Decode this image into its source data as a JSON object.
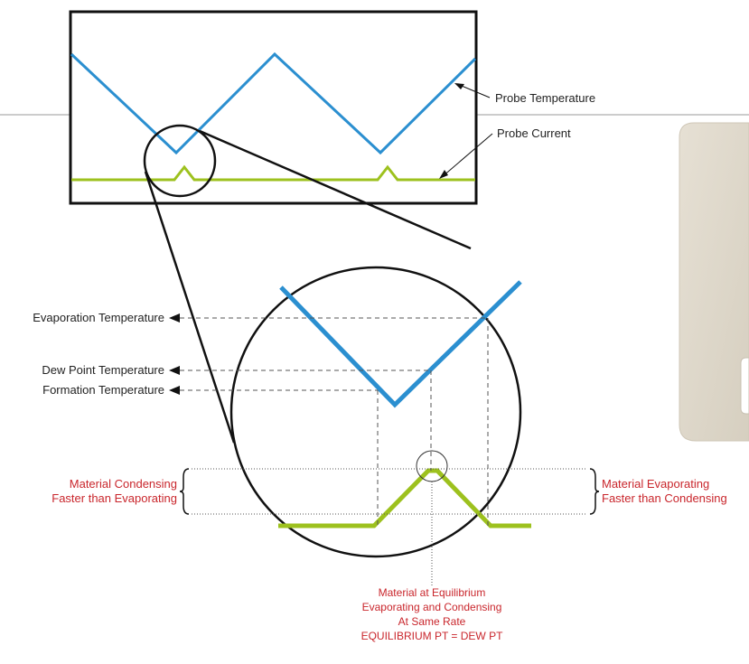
{
  "labels": {
    "probe_temperature": "Probe Temperature",
    "probe_current": "Probe Current",
    "evaporation_temperature": "Evaporation Temperature",
    "dew_point_temperature": "Dew Point Temperature",
    "formation_temperature": "Formation Temperature",
    "condensing_line1": "Material Condensing",
    "condensing_line2": "Faster than Evaporating",
    "evaporating_line1": "Material Evaporating",
    "evaporating_line2": "Faster than Condensing",
    "equilibrium_line1": "Material at Equilibrium",
    "equilibrium_line2": "Evaporating and Condensing",
    "equilibrium_line3": "At Same Rate",
    "equilibrium_line4": "EQUILIBRIUM PT = DEW PT"
  },
  "colors": {
    "temperature_line": "#2b8fd0",
    "current_line": "#9dc11e",
    "annotation_text": "#c9262c",
    "device_panel": "#ddd6c8"
  }
}
